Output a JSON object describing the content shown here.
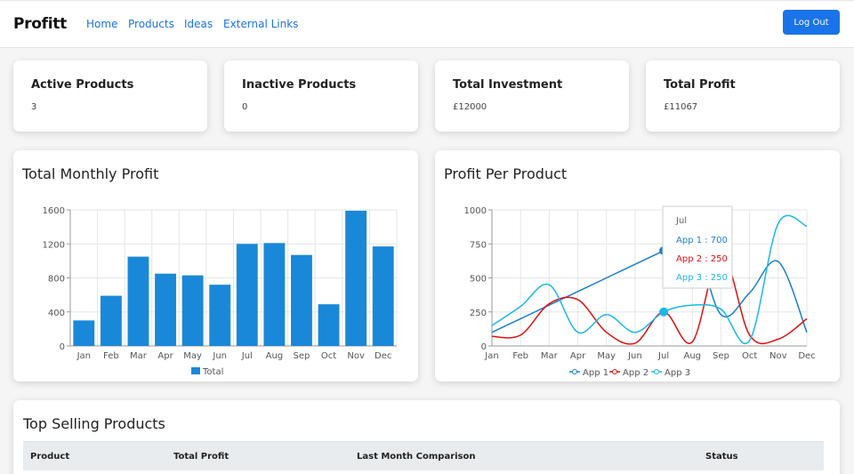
{
  "nav": {
    "brand": "Profitt",
    "links": [
      "Home",
      "Products",
      "Ideas",
      "External Links"
    ],
    "logout": "Log Out"
  },
  "stats": [
    {
      "title": "Active Products",
      "value": "3"
    },
    {
      "title": "Inactive Products",
      "value": "0"
    },
    {
      "title": "Total Investment",
      "value": "£12000"
    },
    {
      "title": "Total Profit",
      "value": "£11067"
    }
  ],
  "panels": {
    "monthly_title": "Total Monthly Profit",
    "product_title": "Profit Per Product",
    "top_selling_title": "Top Selling Products"
  },
  "table": {
    "columns": [
      "Product",
      "Total Profit",
      "Last Month Comparison",
      "Status"
    ]
  },
  "colors": {
    "bar": "#1a88d8",
    "app1": "#1a7fd0",
    "app2": "#e01010",
    "app3": "#1ab8e8",
    "accent": "#1a73e8"
  },
  "chart_data": [
    {
      "type": "bar",
      "categories": [
        "Jan",
        "Feb",
        "Mar",
        "Apr",
        "May",
        "Jun",
        "Jul",
        "Aug",
        "Sep",
        "Oct",
        "Nov",
        "Dec"
      ],
      "series": [
        {
          "name": "Total",
          "values": [
            300,
            590,
            1050,
            850,
            830,
            720,
            1200,
            1210,
            1070,
            490,
            1590,
            1170
          ]
        }
      ],
      "ylim": [
        0,
        1600
      ],
      "yticks": [
        0,
        400,
        800,
        1200,
        1600
      ],
      "grid": true,
      "legend": "bottom"
    },
    {
      "type": "line",
      "categories": [
        "Jan",
        "Feb",
        "Mar",
        "Apr",
        "May",
        "Jun",
        "Jul",
        "Aug",
        "Sep",
        "Oct",
        "Nov",
        "Dec"
      ],
      "series": [
        {
          "name": "App 1",
          "values": [
            100,
            200,
            300,
            400,
            500,
            600,
            700,
            800,
            230,
            390,
            620,
            100
          ]
        },
        {
          "name": "App 2",
          "values": [
            70,
            80,
            310,
            340,
            100,
            20,
            250,
            30,
            690,
            80,
            50,
            200
          ]
        },
        {
          "name": "App 3",
          "values": [
            150,
            290,
            450,
            100,
            230,
            100,
            250,
            300,
            270,
            40,
            900,
            880
          ]
        }
      ],
      "ylim": [
        0,
        1000
      ],
      "yticks": [
        0,
        250,
        500,
        750,
        1000
      ],
      "grid": true,
      "legend": "bottom",
      "tooltip": {
        "title": "Jul",
        "lines": [
          "App 1 : 700",
          "App 2 : 250",
          "App 3 : 250"
        ]
      }
    }
  ]
}
